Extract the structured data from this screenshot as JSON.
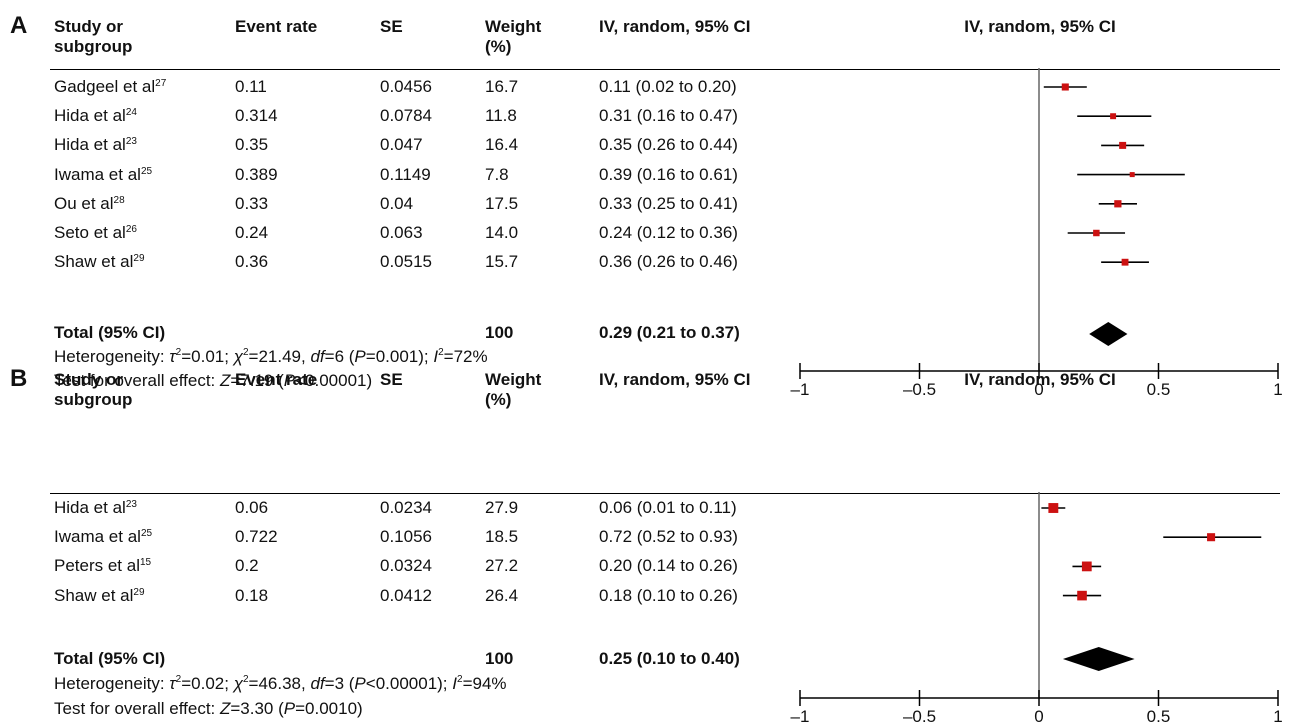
{
  "panels": [
    {
      "letter": "A",
      "headers": {
        "study_line1": "Study or",
        "study_line2": "subgroup",
        "event_rate": "Event rate",
        "se": "SE",
        "weight_line1": "Weight",
        "weight_line2": "(%)",
        "ci": "IV, random, 95% CI",
        "plot": "IV, random, 95% CI"
      },
      "rows": [
        {
          "study": "Gadgeel et al",
          "ref": "27",
          "event_rate": "0.11",
          "se": "0.0456",
          "weight": "16.7",
          "ci": "0.11 (0.02 to 0.20)"
        },
        {
          "study": "Hida et al",
          "ref": "24",
          "event_rate": "0.314",
          "se": "0.0784",
          "weight": "11.8",
          "ci": "0.31 (0.16 to 0.47)"
        },
        {
          "study": "Hida et al",
          "ref": "23",
          "event_rate": "0.35",
          "se": "0.047",
          "weight": "16.4",
          "ci": "0.35 (0.26 to 0.44)"
        },
        {
          "study": "Iwama et al",
          "ref": "25",
          "event_rate": "0.389",
          "se": "0.1149",
          "weight": "7.8",
          "ci": "0.39 (0.16 to 0.61)"
        },
        {
          "study": "Ou et al",
          "ref": "28",
          "event_rate": "0.33",
          "se": "0.04",
          "weight": "17.5",
          "ci": "0.33 (0.25 to 0.41)"
        },
        {
          "study": "Seto et al",
          "ref": "26",
          "event_rate": "0.24",
          "se": "0.063",
          "weight": "14.0",
          "ci": "0.24 (0.12 to 0.36)"
        },
        {
          "study": "Shaw et al",
          "ref": "29",
          "event_rate": "0.36",
          "se": "0.0515",
          "weight": "15.7",
          "ci": "0.36 (0.26 to 0.46)"
        }
      ],
      "total": {
        "label": "Total (95% CI)",
        "weight": "100",
        "ci": "0.29 (0.21 to 0.37)"
      },
      "heterogeneity": {
        "prefix": "Heterogeneity: ",
        "tau_sym": "τ",
        "tau_val": "=0.01; ",
        "chi_sym": "χ",
        "chi_val": "=21.49, ",
        "df_sym": "df",
        "df_val": "=6 (",
        "p_sym": "P",
        "p_val": "=0.001); ",
        "i_sym": "I",
        "i_val": "=72%"
      },
      "overall": {
        "prefix": "Test for overall effect: ",
        "z_sym": "Z",
        "z_val": "=7.19 (",
        "p_sym": "P",
        "p_val": "<0.00001)"
      },
      "axis_ticks": [
        "–1",
        "–0.5",
        "0",
        "0.5",
        "1"
      ]
    },
    {
      "letter": "B",
      "headers": {
        "study_line1": "Study or",
        "study_line2": "subgroup",
        "event_rate": "Event rate",
        "se": "SE",
        "weight_line1": "Weight",
        "weight_line2": "(%)",
        "ci": "IV, random, 95% CI",
        "plot": "IV, random, 95% CI"
      },
      "rows": [
        {
          "study": "Hida et al",
          "ref": "23",
          "event_rate": "0.06",
          "se": "0.0234",
          "weight": "27.9",
          "ci": "0.06 (0.01 to 0.11)"
        },
        {
          "study": "Iwama et al",
          "ref": "25",
          "event_rate": "0.722",
          "se": "0.1056",
          "weight": "18.5",
          "ci": "0.72 (0.52 to 0.93)"
        },
        {
          "study": "Peters et al",
          "ref": "15",
          "event_rate": "0.2",
          "se": "0.0324",
          "weight": "27.2",
          "ci": "0.20 (0.14 to 0.26)"
        },
        {
          "study": "Shaw et al",
          "ref": "29",
          "event_rate": "0.18",
          "se": "0.0412",
          "weight": "26.4",
          "ci": "0.18 (0.10 to 0.26)"
        }
      ],
      "total": {
        "label": "Total (95% CI)",
        "weight": "100",
        "ci": "0.25 (0.10 to 0.40)"
      },
      "heterogeneity": {
        "prefix": "Heterogeneity: ",
        "tau_sym": "τ",
        "tau_val": "=0.02; ",
        "chi_sym": "χ",
        "chi_val": "=46.38, ",
        "df_sym": "df",
        "df_val": "=3 (",
        "p_sym": "P",
        "p_val": "<0.00001); ",
        "i_sym": "I",
        "i_val": "=94%"
      },
      "overall": {
        "prefix": "Test for overall effect: ",
        "z_sym": "Z",
        "z_val": "=3.30 (",
        "p_sym": "P",
        "p_val": "=0.0010)"
      },
      "axis_ticks": [
        "–1",
        "–0.5",
        "0",
        "0.5",
        "1"
      ]
    }
  ],
  "colors": {
    "marker": "#cc1111",
    "diamond": "#000000",
    "line": "#000000"
  },
  "chart_data": [
    {
      "type": "forest",
      "title": "",
      "xlim": [
        -1,
        1
      ],
      "series": [
        {
          "study": "Gadgeel et al",
          "estimate": 0.11,
          "lower": 0.02,
          "upper": 0.2,
          "weight": 16.7
        },
        {
          "study": "Hida et al",
          "estimate": 0.31,
          "lower": 0.16,
          "upper": 0.47,
          "weight": 11.8
        },
        {
          "study": "Hida et al",
          "estimate": 0.35,
          "lower": 0.26,
          "upper": 0.44,
          "weight": 16.4
        },
        {
          "study": "Iwama et al",
          "estimate": 0.39,
          "lower": 0.16,
          "upper": 0.61,
          "weight": 7.8
        },
        {
          "study": "Ou et al",
          "estimate": 0.33,
          "lower": 0.25,
          "upper": 0.41,
          "weight": 17.5
        },
        {
          "study": "Seto et al",
          "estimate": 0.24,
          "lower": 0.12,
          "upper": 0.36,
          "weight": 14.0
        },
        {
          "study": "Shaw et al",
          "estimate": 0.36,
          "lower": 0.26,
          "upper": 0.46,
          "weight": 15.7
        }
      ],
      "total": {
        "estimate": 0.29,
        "lower": 0.21,
        "upper": 0.37
      }
    },
    {
      "type": "forest",
      "title": "",
      "xlim": [
        -1,
        1
      ],
      "series": [
        {
          "study": "Hida et al",
          "estimate": 0.06,
          "lower": 0.01,
          "upper": 0.11,
          "weight": 27.9
        },
        {
          "study": "Iwama et al",
          "estimate": 0.72,
          "lower": 0.52,
          "upper": 0.93,
          "weight": 18.5
        },
        {
          "study": "Peters et al",
          "estimate": 0.2,
          "lower": 0.14,
          "upper": 0.26,
          "weight": 27.2
        },
        {
          "study": "Shaw et al",
          "estimate": 0.18,
          "lower": 0.1,
          "upper": 0.26,
          "weight": 26.4
        }
      ],
      "total": {
        "estimate": 0.25,
        "lower": 0.1,
        "upper": 0.4
      }
    }
  ]
}
